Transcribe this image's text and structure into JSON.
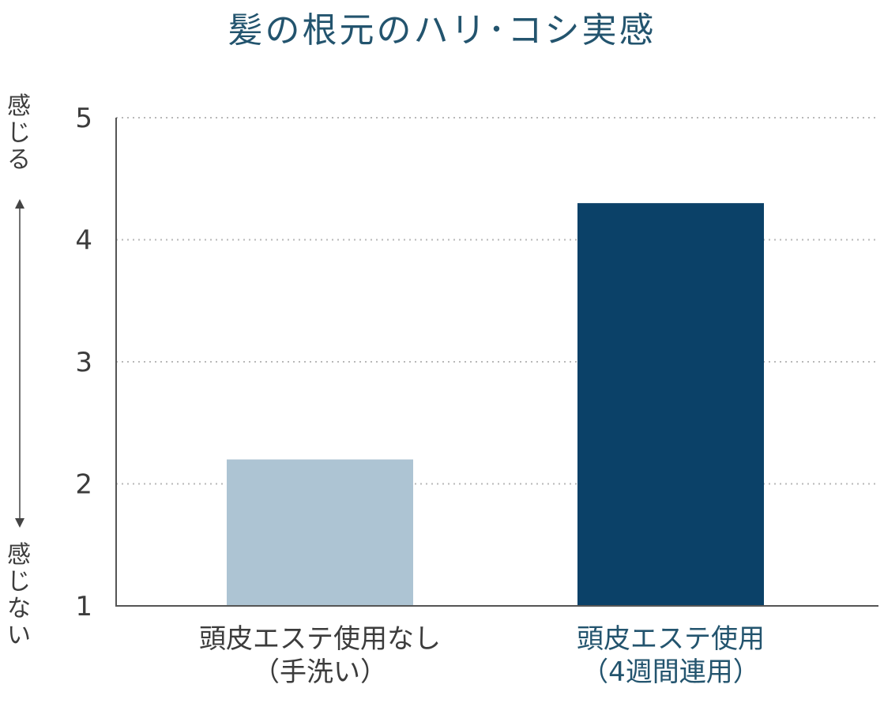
{
  "chart_data": {
    "type": "bar",
    "title": "髪の根元のハリ･コシ実感",
    "ylabel_top": "感じる",
    "ylabel_bottom": "感じない",
    "categories": [
      {
        "line1": "頭皮エステ使用なし",
        "line2": "（手洗い）"
      },
      {
        "line1": "頭皮エステ使用",
        "line2": "（4週間連用）"
      }
    ],
    "values": [
      2.2,
      4.3
    ],
    "ylim": [
      1,
      5
    ],
    "yticks": [
      1,
      2,
      3,
      4,
      5
    ],
    "grid": true,
    "colors": {
      "bars": [
        "#adc4d3",
        "#0b4168"
      ],
      "labels": [
        "#3c3c3c",
        "#23546e"
      ],
      "grid": "#b8b8b8",
      "axis": "#555555",
      "title": "#23546e"
    }
  }
}
